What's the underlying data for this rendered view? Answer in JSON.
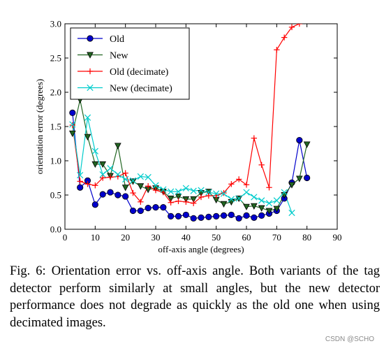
{
  "figure": {
    "caption": "Fig. 6: Orientation error vs. off-axis angle. Both variants of the tag detector perform similarly at small angles, but the new detector performance does not degrade as quickly as the old one when using decimated images.",
    "watermark": "CSDN @SCHO"
  },
  "chart_data": {
    "type": "line",
    "title": "",
    "xlabel": "off-axis angle (degrees)",
    "ylabel": "orientation error (degrees)",
    "xlim": [
      0,
      90
    ],
    "ylim": [
      0.0,
      3.0
    ],
    "xticks": [
      0,
      10,
      20,
      30,
      40,
      50,
      60,
      70,
      80,
      90
    ],
    "xtick_labels": [
      "0",
      "10",
      "20",
      "30",
      "40",
      "50",
      "60",
      "70",
      "80",
      "90"
    ],
    "yticks": [
      0.0,
      0.5,
      1.0,
      1.5,
      2.0,
      2.5,
      3.0
    ],
    "ytick_labels": [
      "0.0",
      "0.5",
      "1.0",
      "1.5",
      "2.0",
      "2.5",
      "3.0"
    ],
    "grid": false,
    "legend_position": "top-left",
    "series": [
      {
        "name": "Old",
        "color": "#0000cc",
        "marker": "circle",
        "x": [
          2.5,
          5,
          7.5,
          10,
          12.5,
          15,
          17.5,
          20,
          22.5,
          25,
          27.5,
          30,
          32.5,
          35,
          37.5,
          40,
          42.5,
          45,
          47.5,
          50,
          52.5,
          55,
          57.5,
          60,
          62.5,
          65,
          67.5,
          70,
          72.5,
          75,
          77.5,
          80
        ],
        "y": [
          1.7,
          0.61,
          0.71,
          0.36,
          0.51,
          0.54,
          0.5,
          0.48,
          0.27,
          0.27,
          0.31,
          0.32,
          0.32,
          0.19,
          0.19,
          0.21,
          0.16,
          0.17,
          0.18,
          0.19,
          0.2,
          0.21,
          0.16,
          0.2,
          0.17,
          0.2,
          0.23,
          0.27,
          0.45,
          0.68,
          1.3,
          0.75
        ]
      },
      {
        "name": "New",
        "color": "#226622",
        "marker": "triangle-down",
        "x": [
          2.5,
          5,
          7.5,
          10,
          12.5,
          15,
          17.5,
          20,
          22.5,
          25,
          27.5,
          30,
          32.5,
          35,
          37.5,
          40,
          42.5,
          45,
          47.5,
          50,
          52.5,
          55,
          57.5,
          60,
          62.5,
          65,
          67.5,
          70,
          72.5,
          75,
          77.5,
          80
        ],
        "y": [
          1.4,
          1.89,
          1.35,
          0.95,
          0.95,
          0.78,
          1.22,
          0.61,
          0.7,
          0.63,
          0.58,
          0.6,
          0.55,
          0.45,
          0.48,
          0.44,
          0.44,
          0.53,
          0.55,
          0.43,
          0.37,
          0.4,
          0.45,
          0.33,
          0.34,
          0.31,
          0.27,
          0.3,
          0.5,
          0.65,
          0.74,
          1.24
        ]
      },
      {
        "name": "Old (decimate)",
        "color": "#ff0000",
        "marker": "plus",
        "x": [
          2.5,
          5,
          7.5,
          10,
          12.5,
          15,
          17.5,
          20,
          22.5,
          25,
          27.5,
          30,
          32.5,
          35,
          37.5,
          40,
          42.5,
          45,
          47.5,
          50,
          52.5,
          55,
          57.5,
          60,
          62.5,
          65,
          67.5,
          70,
          72.5,
          75,
          77.5
        ],
        "y": [
          1.52,
          0.7,
          0.66,
          0.64,
          0.75,
          0.76,
          0.77,
          0.82,
          0.53,
          0.4,
          0.63,
          0.57,
          0.54,
          0.39,
          0.41,
          0.4,
          0.38,
          0.47,
          0.49,
          0.49,
          0.53,
          0.66,
          0.73,
          0.65,
          1.33,
          0.94,
          0.61,
          2.62,
          2.8,
          2.95,
          3.0
        ]
      },
      {
        "name": "New (decimate)",
        "color": "#00cccc",
        "marker": "x",
        "x": [
          2.5,
          5,
          7.5,
          10,
          12.5,
          15,
          17.5,
          20,
          22.5,
          25,
          27.5,
          30,
          32.5,
          35,
          37.5,
          40,
          42.5,
          45,
          47.5,
          50,
          52.5,
          55,
          57.5,
          60,
          62.5,
          65,
          67.5,
          70,
          72.5,
          75
        ],
        "y": [
          1.53,
          0.79,
          1.63,
          1.14,
          0.8,
          0.89,
          0.8,
          0.73,
          0.71,
          0.77,
          0.76,
          0.64,
          0.58,
          0.55,
          0.55,
          0.6,
          0.56,
          0.57,
          0.54,
          0.52,
          0.52,
          0.44,
          0.45,
          0.54,
          0.47,
          0.42,
          0.38,
          0.42,
          0.54,
          0.24
        ]
      }
    ]
  }
}
